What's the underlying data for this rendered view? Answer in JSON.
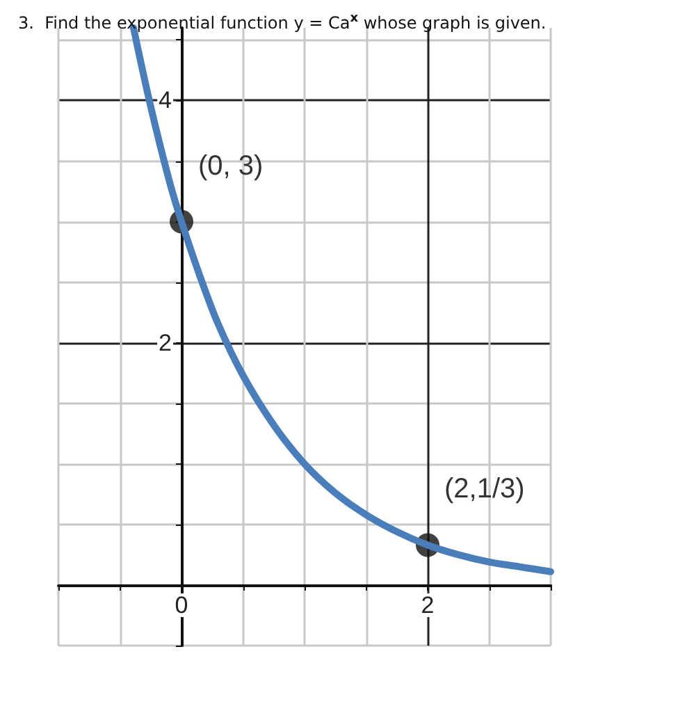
{
  "chart_data": {
    "type": "line",
    "title": "3.  Find the exponential function y = Ca$^{x}$ whose graph is given.",
    "xlim": [
      -1,
      3
    ],
    "ylim": [
      -0.5,
      4.6
    ],
    "xticks": [
      {
        "value": -1,
        "label": null
      },
      {
        "value": -0.5,
        "label": null
      },
      0,
      {
        "value": 0.5,
        "label": null
      },
      {
        "value": 1,
        "label": null
      },
      {
        "value": 1.5,
        "label": null
      },
      2,
      {
        "value": 2.5,
        "label": null
      },
      {
        "value": 3,
        "label": null
      }
    ],
    "yticks": [
      {
        "value": -0.5,
        "label": null
      },
      {
        "value": 0,
        "label": null
      },
      {
        "value": 0.5,
        "label": null
      },
      {
        "value": 1,
        "label": null
      },
      {
        "value": 1.5,
        "label": null
      },
      2,
      {
        "value": 2.5,
        "label": null
      },
      {
        "value": 3,
        "label": null
      },
      {
        "value": 3.5,
        "label": null
      },
      4,
      {
        "value": 4.5,
        "label": null
      }
    ],
    "grid": true,
    "series": [
      {
        "color": "#4a7ebb",
        "marker": "none",
        "line_style": "solid",
        "x": [
          -0.39,
          -0.25,
          -0.1,
          0,
          0.15,
          0.3,
          0.5,
          0.75,
          1,
          1.25,
          1.5,
          1.75,
          2,
          2.25,
          2.5,
          2.75,
          3
        ],
        "values": [
          4.6,
          3.95,
          3.34,
          3,
          2.55,
          2.15,
          1.73,
          1.32,
          1,
          0.76,
          0.58,
          0.44,
          0.33,
          0.25,
          0.19,
          0.15,
          0.11
        ]
      },
      {
        "type": "scatter",
        "color": "#111111",
        "marker": "circle",
        "x": [
          0,
          2
        ],
        "values": [
          3,
          0.33
        ]
      }
    ],
    "annotations": [
      {
        "text": "(0, 3)",
        "x": 0,
        "y": 3
      },
      {
        "text": "(2,1/3)",
        "x": 2,
        "y": 0.33
      }
    ]
  }
}
